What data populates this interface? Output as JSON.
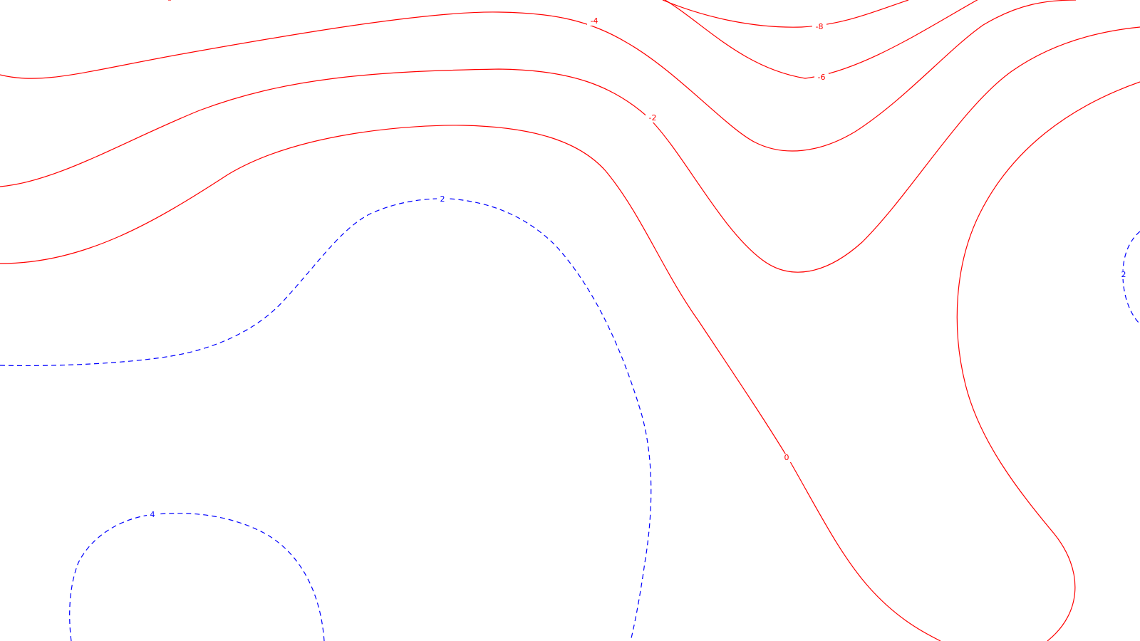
{
  "colors": {
    "background": "#ffffff",
    "negative_contour": "#ff0000",
    "positive_contour": "#0000ff"
  },
  "contour_labels": {
    "minus8": "-8",
    "minus6": "-6",
    "minus4": "-4",
    "minus2": "-2",
    "zero": "0",
    "plus2_center": "2",
    "plus2_right": "2",
    "plus4": "4"
  },
  "contour_styles": {
    "negative_and_zero": "solid",
    "positive": "dashed"
  }
}
